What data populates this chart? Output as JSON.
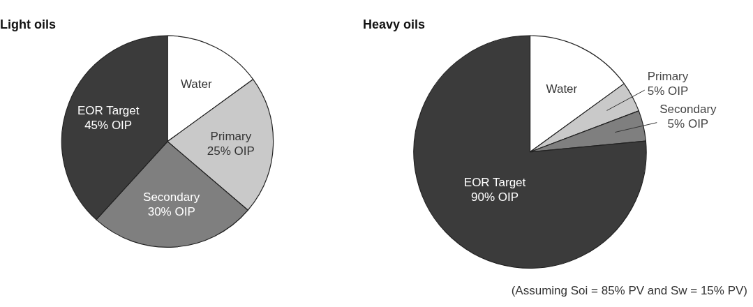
{
  "chart_data": [
    {
      "type": "pie",
      "title": "Light oils",
      "categories": [
        "Water",
        "Primary\n25% OIP",
        "Secondary\n30% OIP",
        "EOR Target\n45% OIP"
      ],
      "values": [
        15,
        21.25,
        25.5,
        38.25
      ],
      "colors": [
        "#ffffff",
        "#c9c9c9",
        "#7f7f7f",
        "#3b3b3b"
      ],
      "legend": false
    },
    {
      "type": "pie",
      "title": "Heavy oils",
      "categories": [
        "Water",
        "Primary\n5% OIP",
        "Secondary\n5% OIP",
        "EOR Target\n90% OIP"
      ],
      "values": [
        15,
        4.25,
        4.25,
        76.5
      ],
      "colors": [
        "#ffffff",
        "#c9c9c9",
        "#7f7f7f",
        "#3b3b3b"
      ],
      "legend": false,
      "annotations": [
        "(Assuming Soi = 85% PV and Sw = 15% PV)"
      ]
    }
  ]
}
